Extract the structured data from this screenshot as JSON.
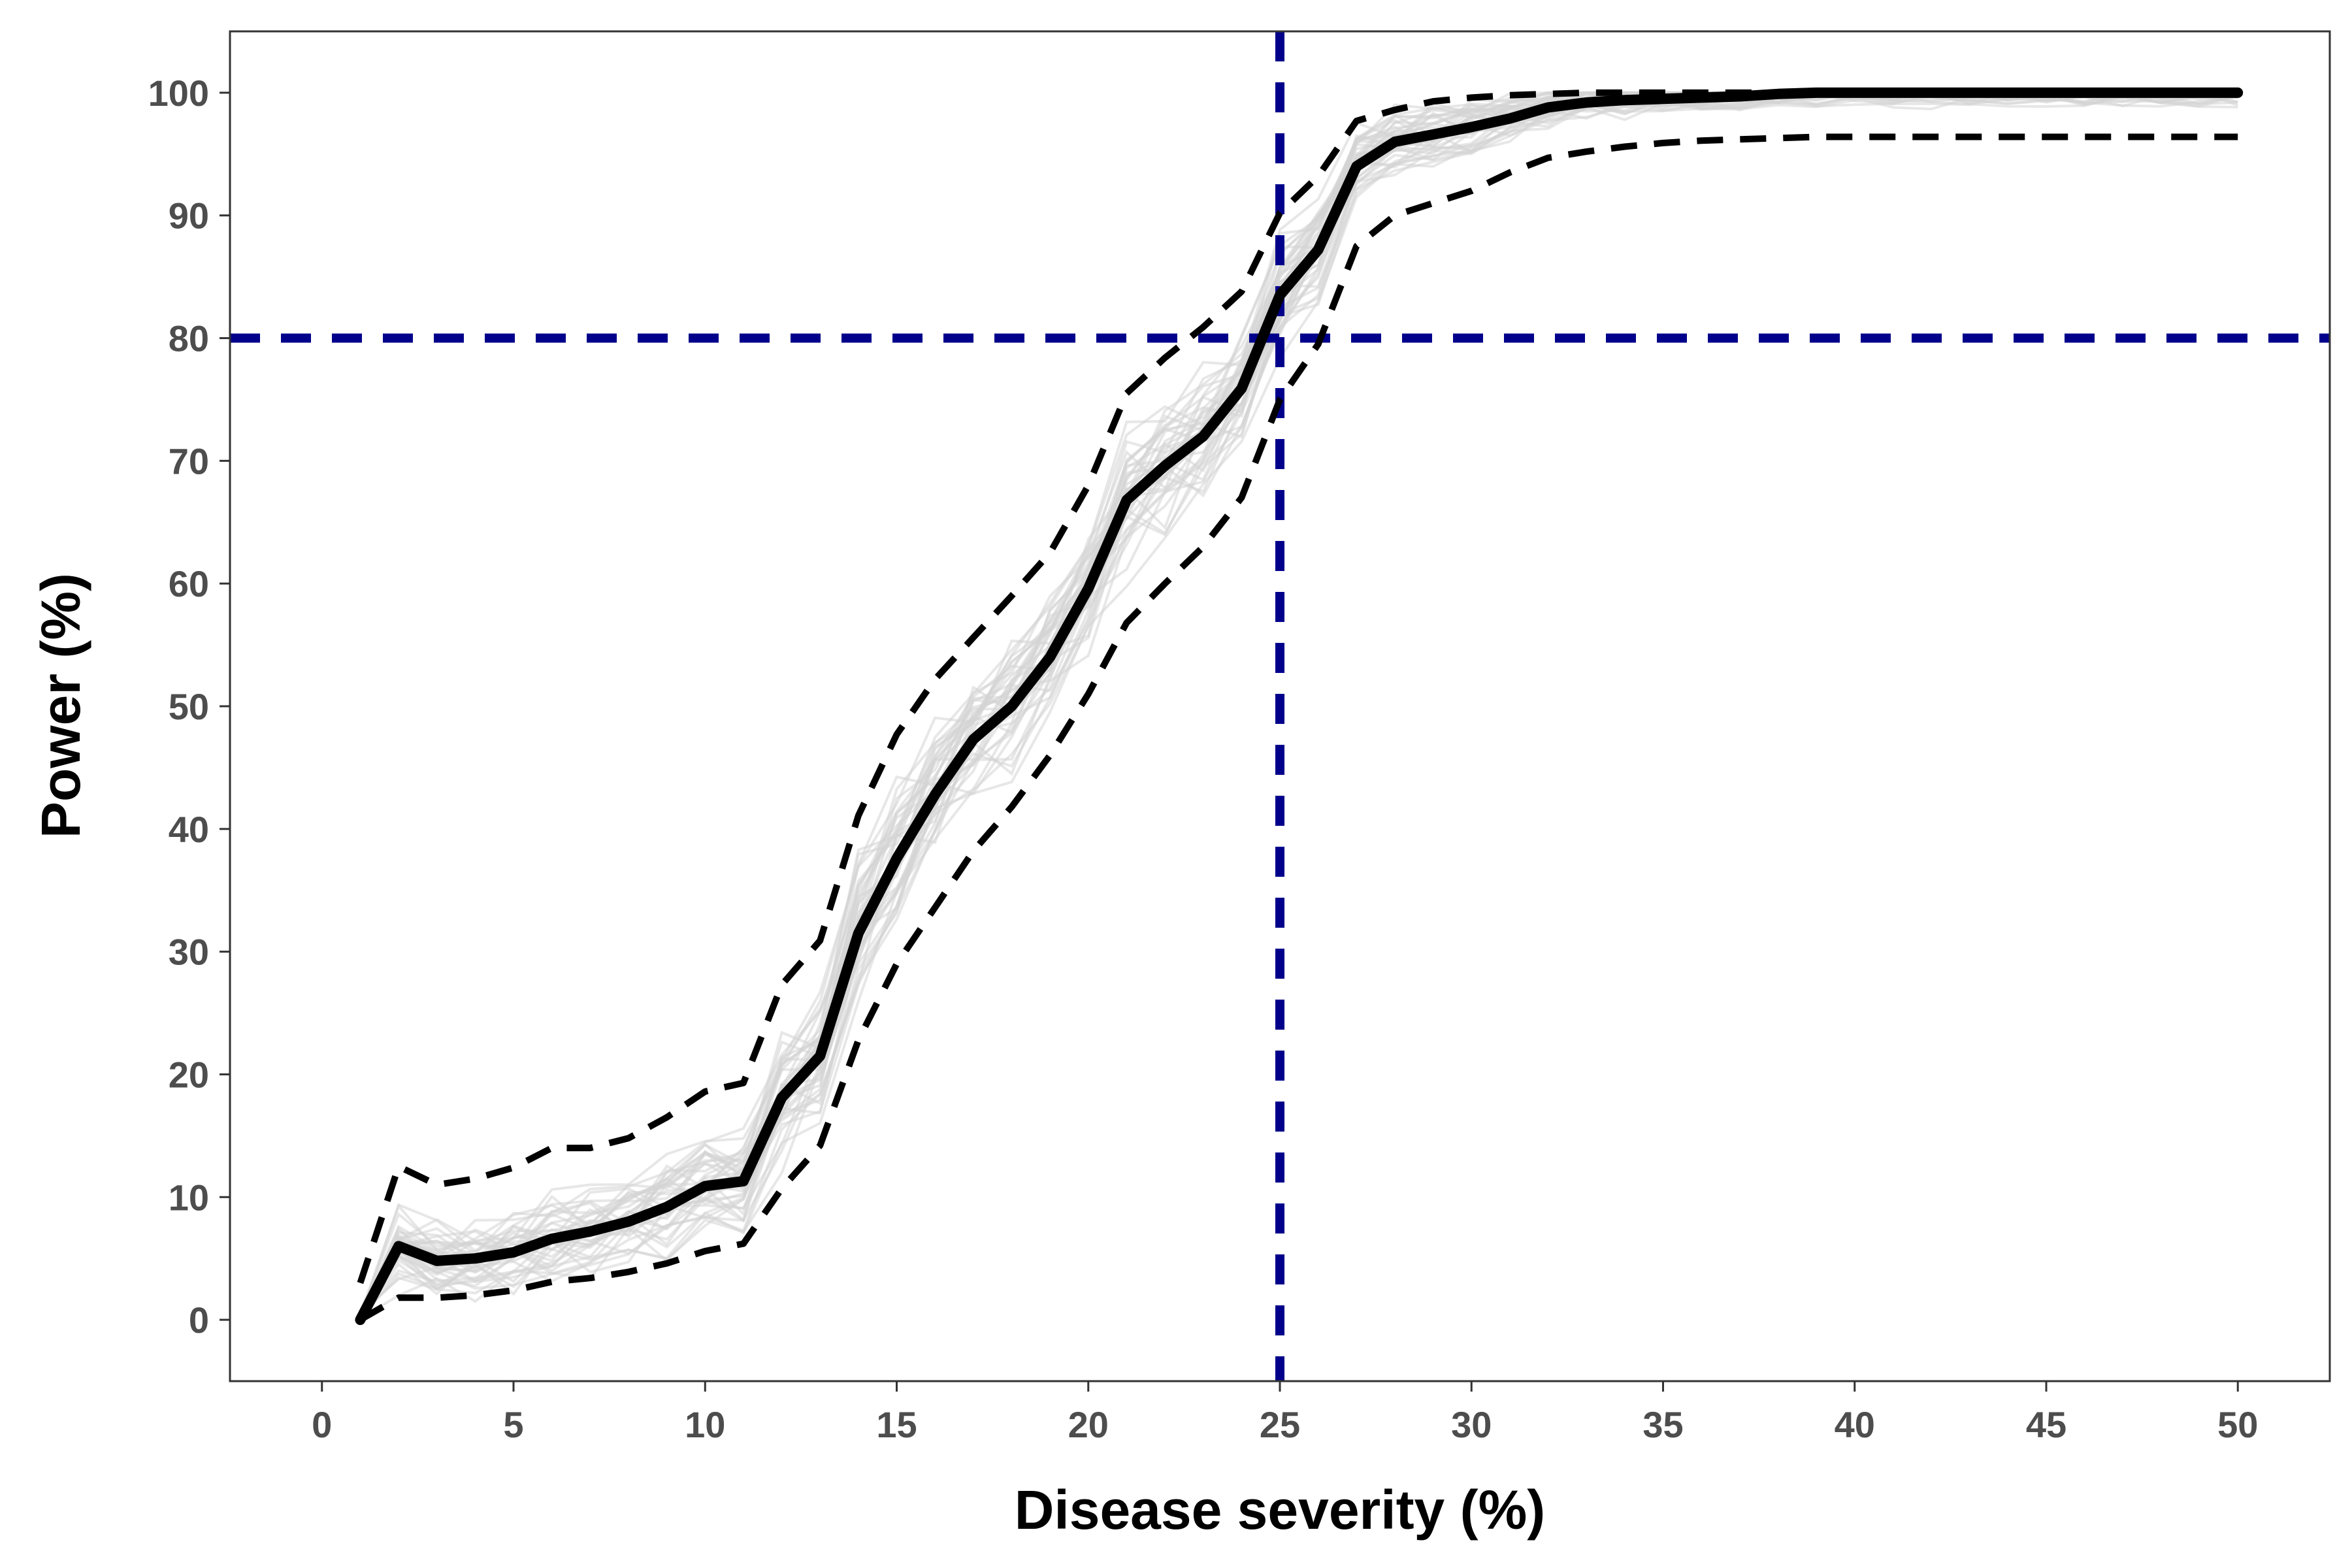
{
  "chart_data": {
    "type": "line",
    "title": "",
    "xlabel": "Disease severity (%)",
    "ylabel": "Power (%)",
    "xlim": [
      -2.4,
      52.4
    ],
    "ylim": [
      -5,
      105
    ],
    "x_ticks": [
      0,
      5,
      10,
      15,
      20,
      25,
      30,
      35,
      40,
      45,
      50
    ],
    "x_tick_labels": [
      "0",
      "5",
      "10",
      "15",
      "20",
      "25",
      "30",
      "35",
      "40",
      "45",
      "50"
    ],
    "y_ticks": [
      0,
      10,
      20,
      30,
      40,
      50,
      60,
      70,
      80,
      90,
      100
    ],
    "y_tick_labels": [
      "0",
      "10",
      "20",
      "30",
      "40",
      "50",
      "60",
      "70",
      "80",
      "90",
      "100"
    ],
    "grid": false,
    "x": [
      1,
      2,
      3,
      4,
      5,
      6,
      7,
      8,
      9,
      10,
      11,
      12,
      13,
      14,
      15,
      16,
      17,
      18,
      19,
      20,
      21,
      22,
      23,
      24,
      25,
      26,
      27,
      28,
      29,
      30,
      31,
      32,
      33,
      34,
      35,
      36,
      37,
      38,
      39,
      40,
      41,
      42,
      43,
      44,
      45,
      46,
      47,
      48,
      49,
      50
    ],
    "series": [
      {
        "role": "mean",
        "values": [
          0,
          6,
          4.8,
          5,
          5.5,
          6.6,
          7.2,
          8,
          9.2,
          10.9,
          11.3,
          18.1,
          21.5,
          31.5,
          37.6,
          42.8,
          47.3,
          50,
          54,
          59.6,
          66.8,
          69.6,
          72,
          75.9,
          83.5,
          87.2,
          94,
          96,
          96.6,
          97.2,
          97.9,
          98.8,
          99.2,
          99.4,
          99.5,
          99.6,
          99.7,
          99.9,
          100,
          100,
          100,
          100,
          100,
          100,
          100,
          100,
          100,
          100,
          100,
          100
        ]
      },
      {
        "role": "upper",
        "values": [
          3,
          12.5,
          11,
          11.5,
          12.4,
          14,
          14,
          14.8,
          16.5,
          18.6,
          19.3,
          27.3,
          30.9,
          41.1,
          47.7,
          52.2,
          55.6,
          59,
          62.5,
          68,
          75.5,
          78.4,
          80.9,
          83.8,
          90.2,
          93.2,
          97.7,
          98.6,
          99.3,
          99.6,
          99.8,
          99.9,
          100,
          100,
          100,
          100,
          100,
          100,
          100,
          100,
          100,
          100,
          100,
          100,
          100,
          100,
          100,
          100,
          100,
          100
        ]
      },
      {
        "role": "lower",
        "values": [
          0,
          1.8,
          1.8,
          2,
          2.4,
          3.1,
          3.4,
          3.9,
          4.6,
          5.6,
          6.2,
          10.7,
          14.2,
          22.8,
          29,
          33.6,
          38.2,
          41.8,
          46,
          51,
          56.8,
          60,
          63,
          67,
          75,
          79.5,
          87.5,
          90,
          91,
          92,
          93.5,
          94.7,
          95.2,
          95.6,
          95.9,
          96.1,
          96.2,
          96.3,
          96.4,
          96.4,
          96.4,
          96.4,
          96.4,
          96.4,
          96.4,
          96.4,
          96.4,
          96.4,
          96.4,
          96.4
        ]
      }
    ],
    "reference_lines": [
      {
        "orientation": "vertical",
        "x": 25
      },
      {
        "orientation": "horizontal",
        "y": 80
      }
    ],
    "colors": {
      "mean": "#000000",
      "bounds": "#000000",
      "simulations": "#d3d3d3",
      "reference": "#00008b",
      "axis_text": "#4d4d4d",
      "panel_border": "#333333"
    },
    "simulation_runs": 40
  }
}
